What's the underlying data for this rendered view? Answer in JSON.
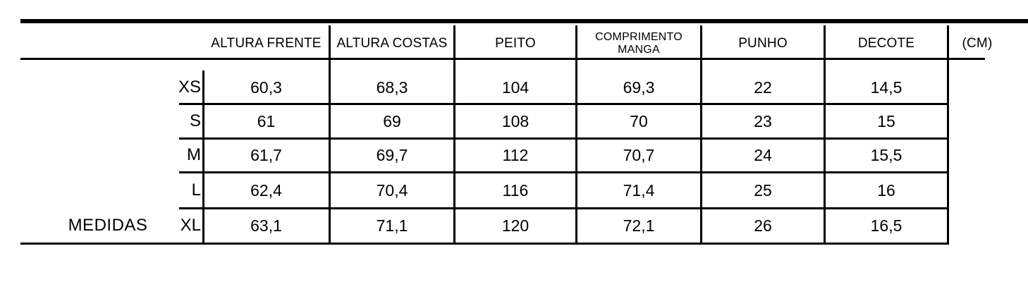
{
  "page": {
    "background_color": "#ffffff",
    "line_color": "#000000",
    "text_color": "#000000"
  },
  "unit_label": "(CM)",
  "table": {
    "caption": "MEDIDAS",
    "columns": [
      "ALTURA FRENTE",
      "ALTURA COSTAS",
      "PEITO",
      "COMPRIMENTO MANGA",
      "PUNHO",
      "DECOTE"
    ],
    "rows": [
      {
        "size": "XS",
        "values": [
          "60,3",
          "68,3",
          "104",
          "69,3",
          "22",
          "14,5"
        ]
      },
      {
        "size": "S",
        "values": [
          "61",
          "69",
          "108",
          "70",
          "23",
          "15"
        ]
      },
      {
        "size": "M",
        "values": [
          "61,7",
          "69,7",
          "112",
          "70,7",
          "24",
          "15,5"
        ]
      },
      {
        "size": "L",
        "values": [
          "62,4",
          "70,4",
          "116",
          "71,4",
          "25",
          "16"
        ]
      },
      {
        "size": "XL",
        "values": [
          "63,1",
          "71,1",
          "120",
          "72,1",
          "26",
          "16,5"
        ]
      }
    ]
  }
}
